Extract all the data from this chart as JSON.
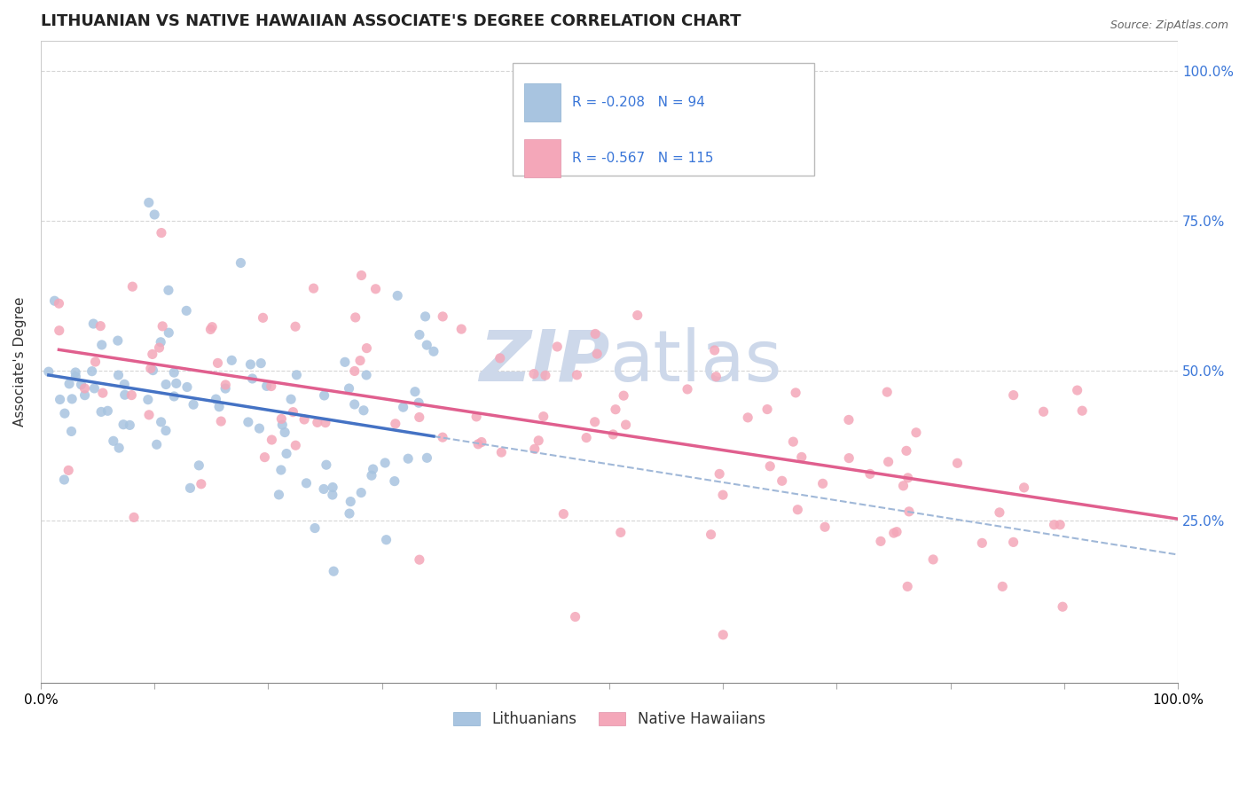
{
  "title": "LITHUANIAN VS NATIVE HAWAIIAN ASSOCIATE'S DEGREE CORRELATION CHART",
  "source": "Source: ZipAtlas.com",
  "ylabel": "Associate's Degree",
  "legend_r1": "-0.208",
  "legend_n1": "94",
  "legend_r2": "-0.567",
  "legend_n2": "115",
  "legend_label1": "Lithuanians",
  "legend_label2": "Native Hawaiians",
  "xlim": [
    0.0,
    1.0
  ],
  "ylim": [
    -0.02,
    1.05
  ],
  "yticks": [
    0.25,
    0.5,
    0.75,
    1.0
  ],
  "ytick_labels": [
    "25.0%",
    "50.0%",
    "75.0%",
    "100.0%"
  ],
  "xtick_labels": [
    "0.0%",
    "100.0%"
  ],
  "color_blue": "#a8c4e0",
  "color_pink": "#f4a7b9",
  "line_blue": "#4472c4",
  "line_pink": "#e05f8e",
  "dash_color": "#a0b8d8",
  "watermark_color": "#cdd8ea",
  "title_fontsize": 13,
  "background_color": "#ffffff"
}
